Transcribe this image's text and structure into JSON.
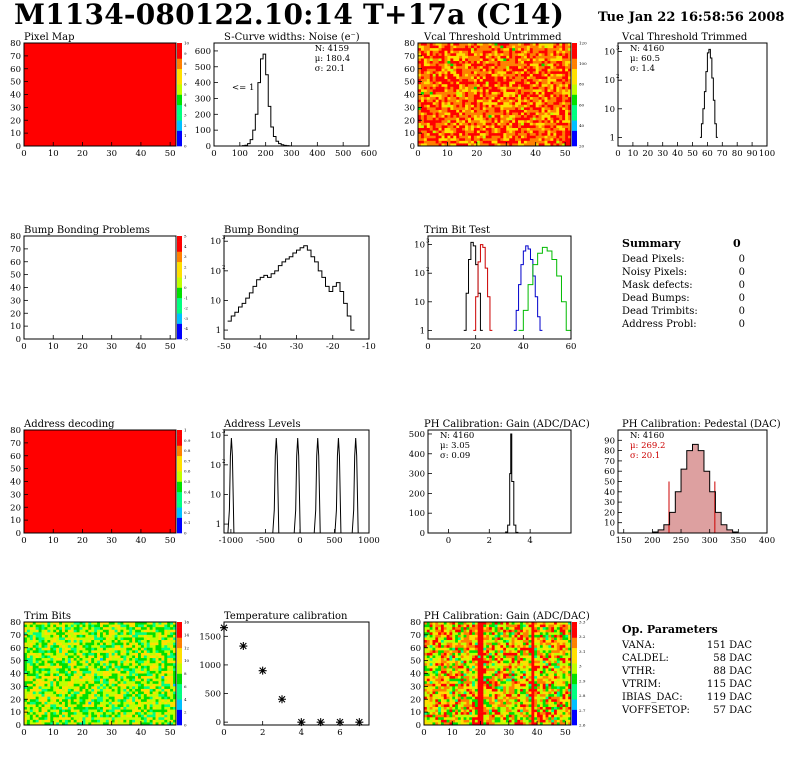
{
  "header": {
    "title": "M1134-080122.10:14 T+17a (C14)",
    "date": "Tue Jan 22 16:58:56 2008"
  },
  "colors": {
    "red_fill": "#ff0000",
    "pedestal_fill": "#dda0a0",
    "trim_series": [
      "#000000",
      "#cc0000",
      "#0000cc",
      "#00bb00"
    ]
  },
  "chart_data": [
    {
      "id": "pixel-map",
      "type": "heatmap",
      "title": "Pixel Map",
      "pattern": "uniform-red",
      "xlim": [
        0,
        52
      ],
      "ylim": [
        0,
        80
      ],
      "xticks": [
        0,
        10,
        20,
        30,
        40,
        50
      ],
      "yticks": [
        0,
        10,
        20,
        30,
        40,
        50,
        60,
        70,
        80
      ],
      "zticks": [
        "0",
        "1",
        "2",
        "3",
        "4",
        "5",
        "6",
        "7",
        "8",
        "9",
        "10"
      ]
    },
    {
      "id": "scurve-widths",
      "type": "line",
      "title": "S-Curve widths: Noise (e⁻)",
      "log": false,
      "xlim": [
        0,
        600
      ],
      "ylim": [
        0,
        650
      ],
      "xticks": [
        0,
        100,
        200,
        300,
        400,
        500,
        600
      ],
      "yticks": [
        0,
        100,
        200,
        300,
        400,
        500,
        600
      ],
      "stats": [
        "N: 4159",
        "μ: 180.4",
        "σ: 20.1"
      ],
      "annotation": "<= 1",
      "x": [
        100,
        110,
        120,
        130,
        140,
        150,
        160,
        170,
        180,
        190,
        200,
        210,
        220,
        230,
        240,
        250,
        260,
        270,
        280,
        290,
        300
      ],
      "values": [
        0,
        2,
        5,
        15,
        40,
        100,
        200,
        400,
        550,
        580,
        450,
        250,
        120,
        60,
        30,
        15,
        8,
        4,
        2,
        1,
        0
      ]
    },
    {
      "id": "vcal-untrimmed",
      "type": "heatmap",
      "title": "Vcal Threshold Untrimmed",
      "pattern": "noise-warm",
      "xlim": [
        0,
        52
      ],
      "ylim": [
        0,
        80
      ],
      "xticks": [
        0,
        10,
        20,
        30,
        40,
        50
      ],
      "yticks": [
        0,
        10,
        20,
        30,
        40,
        50,
        60,
        70,
        80
      ],
      "zticks": [
        "20",
        "40",
        "60",
        "80",
        "100",
        "120"
      ]
    },
    {
      "id": "vcal-trimmed",
      "type": "line",
      "title": "Vcal Threshold Trimmed",
      "log": true,
      "xlim": [
        0,
        100
      ],
      "ylim": [
        0.5,
        2000
      ],
      "xticks": [
        0,
        10,
        20,
        30,
        40,
        50,
        60,
        70,
        80,
        90,
        100
      ],
      "yticks": [
        1,
        10,
        100,
        1000
      ],
      "stats": [
        "N: 4160",
        "μ: 60.5",
        "σ:  1.4"
      ],
      "x": [
        55,
        56,
        57,
        58,
        59,
        60,
        61,
        62,
        63,
        64,
        65,
        66
      ],
      "values": [
        1,
        3,
        10,
        40,
        200,
        900,
        1200,
        600,
        120,
        20,
        3,
        1
      ]
    },
    {
      "id": "bump-problems",
      "type": "heatmap",
      "title": "Bump Bonding Problems",
      "pattern": "empty",
      "xlim": [
        0,
        52
      ],
      "ylim": [
        0,
        80
      ],
      "xticks": [
        0,
        10,
        20,
        30,
        40,
        50
      ],
      "yticks": [
        0,
        10,
        20,
        30,
        40,
        50,
        60,
        70,
        80
      ],
      "zticks": [
        "-5",
        "-4",
        "-3",
        "-2",
        "-1",
        "0",
        "1",
        "2",
        "3",
        "4",
        "5"
      ]
    },
    {
      "id": "bump-bonding",
      "type": "line",
      "title": "Bump Bonding",
      "log": true,
      "xlim": [
        -50,
        -10
      ],
      "ylim": [
        0.5,
        1500
      ],
      "xticks": [
        -50,
        -40,
        -30,
        -20,
        -10
      ],
      "yticks": [
        1,
        10,
        100,
        1000
      ],
      "x": [
        -49,
        -48,
        -47,
        -46,
        -45,
        -44,
        -43,
        -42,
        -41,
        -40,
        -39,
        -38,
        -37,
        -36,
        -35,
        -34,
        -33,
        -32,
        -31,
        -30,
        -29,
        -28,
        -27,
        -26,
        -25,
        -24,
        -23,
        -22,
        -21,
        -20,
        -19,
        -18,
        -17,
        -16,
        -15
      ],
      "values": [
        2,
        3,
        4,
        6,
        8,
        12,
        18,
        30,
        50,
        60,
        70,
        60,
        80,
        100,
        150,
        200,
        250,
        300,
        400,
        500,
        600,
        700,
        500,
        300,
        200,
        100,
        60,
        30,
        20,
        30,
        40,
        20,
        8,
        3,
        1
      ]
    },
    {
      "id": "trim-bit-test",
      "type": "line",
      "title": "Trim Bit Test",
      "log": true,
      "xlim": [
        0,
        60
      ],
      "ylim": [
        0.5,
        2000
      ],
      "xticks": [
        0,
        20,
        40,
        60
      ],
      "yticks": [
        1,
        10,
        100,
        1000
      ],
      "series": [
        {
          "x": [
            15,
            16,
            17,
            18,
            19,
            20,
            21,
            22
          ],
          "values": [
            1,
            20,
            300,
            1200,
            900,
            200,
            20,
            1
          ]
        },
        {
          "x": [
            19,
            20,
            21,
            22,
            23,
            24,
            25,
            26
          ],
          "values": [
            1,
            15,
            250,
            1000,
            800,
            150,
            15,
            1
          ]
        },
        {
          "x": [
            36,
            37,
            38,
            39,
            40,
            41,
            42,
            43,
            44,
            45,
            46,
            47
          ],
          "values": [
            1,
            5,
            40,
            200,
            600,
            900,
            700,
            300,
            80,
            15,
            3,
            1
          ]
        },
        {
          "x": [
            38,
            40,
            42,
            44,
            46,
            48,
            50,
            52,
            54,
            56,
            58
          ],
          "values": [
            1,
            5,
            40,
            200,
            500,
            800,
            600,
            300,
            80,
            10,
            1
          ]
        }
      ]
    },
    {
      "id": "address-decoding",
      "type": "heatmap",
      "title": "Address decoding",
      "pattern": "uniform-red",
      "xlim": [
        0,
        52
      ],
      "ylim": [
        0,
        80
      ],
      "xticks": [
        0,
        10,
        20,
        30,
        40,
        50
      ],
      "yticks": [
        0,
        10,
        20,
        30,
        40,
        50,
        60,
        70,
        80
      ],
      "zticks": [
        "0",
        "0.1",
        "0.2",
        "0.3",
        "0.4",
        "0.5",
        "0.6",
        "0.7",
        "0.8",
        "0.9",
        "1"
      ]
    },
    {
      "id": "address-levels",
      "type": "line",
      "title": "Address Levels",
      "log": true,
      "xlim": [
        -1100,
        1000
      ],
      "ylim": [
        0.5,
        1500
      ],
      "xticks": [
        -1000,
        -500,
        0,
        500,
        1000
      ],
      "yticks": [
        1,
        10,
        100,
        1000
      ],
      "peaks": [
        -1000,
        -350,
        -40,
        250,
        550,
        800
      ]
    },
    {
      "id": "ph-gain-hist",
      "type": "line",
      "title": "PH Calibration: Gain (ADC/DAC)",
      "log": false,
      "xlim": [
        -1,
        6
      ],
      "ylim": [
        0,
        520
      ],
      "xticks": [
        0,
        2,
        4
      ],
      "yticks": [
        0,
        100,
        200,
        300,
        400,
        500
      ],
      "stats": [
        "N: 4160",
        "μ: 3.05",
        "σ: 0.09"
      ],
      "x": [
        2.7,
        2.8,
        2.9,
        3.0,
        3.05,
        3.1,
        3.2,
        3.3,
        3.4
      ],
      "values": [
        0,
        5,
        40,
        300,
        500,
        260,
        40,
        3,
        0
      ]
    },
    {
      "id": "ph-pedestal",
      "type": "line",
      "title": "PH Calibration: Pedestal (DAC)",
      "log": false,
      "xlim": [
        140,
        400
      ],
      "ylim": [
        0,
        100
      ],
      "xticks": [
        150,
        200,
        250,
        300,
        350,
        400
      ],
      "yticks": [
        0,
        10,
        20,
        30,
        40,
        50,
        60,
        70,
        80,
        90
      ],
      "stats": [
        "N: 4160",
        "μ: 269.2",
        "σ: 20.1"
      ],
      "x": [
        200,
        210,
        220,
        230,
        240,
        250,
        260,
        270,
        280,
        290,
        300,
        310,
        320,
        330,
        340
      ],
      "values": [
        1,
        3,
        8,
        20,
        40,
        62,
        80,
        86,
        80,
        60,
        40,
        20,
        8,
        3,
        1
      ]
    },
    {
      "id": "trim-bits",
      "type": "heatmap",
      "title": "Trim Bits",
      "pattern": "noise-green",
      "xlim": [
        0,
        52
      ],
      "ylim": [
        0,
        80
      ],
      "xticks": [
        0,
        10,
        20,
        30,
        40,
        50
      ],
      "yticks": [
        0,
        10,
        20,
        30,
        40,
        50,
        60,
        70,
        80
      ],
      "zticks": [
        "0",
        "2",
        "4",
        "6",
        "8",
        "10",
        "12",
        "14",
        "16"
      ]
    },
    {
      "id": "temperature-calibration",
      "type": "scatter",
      "title": "Temperature calibration",
      "xlim": [
        0,
        7.5
      ],
      "ylim": [
        -50,
        1750
      ],
      "xticks": [
        0,
        2,
        4,
        6
      ],
      "yticks": [
        0,
        500,
        1000,
        1500
      ],
      "x": [
        0,
        1,
        2,
        3,
        4,
        5,
        6,
        7
      ],
      "values": [
        1650,
        1330,
        900,
        400,
        0,
        0,
        0,
        0
      ]
    },
    {
      "id": "ph-gain-map",
      "type": "heatmap",
      "title": "PH Calibration: Gain (ADC/DAC)",
      "pattern": "noise-mixed",
      "xlim": [
        0,
        52
      ],
      "ylim": [
        0,
        80
      ],
      "xticks": [
        0,
        10,
        20,
        30,
        40,
        50
      ],
      "yticks": [
        0,
        10,
        20,
        30,
        40,
        50,
        60,
        70,
        80
      ],
      "zticks": [
        "2.6",
        "2.7",
        "2.8",
        "2.9",
        "3",
        "3.1",
        "3.2",
        "3.3"
      ]
    }
  ],
  "summary": {
    "title": "Summary",
    "total": "0",
    "items": [
      {
        "label": "Dead Pixels:",
        "value": "0"
      },
      {
        "label": "Noisy Pixels:",
        "value": "0"
      },
      {
        "label": "Mask defects:",
        "value": "0"
      },
      {
        "label": "Dead Bumps:",
        "value": "0"
      },
      {
        "label": "Dead Trimbits:",
        "value": "0"
      },
      {
        "label": "Address Probl:",
        "value": "0"
      }
    ]
  },
  "op_params": {
    "title": "Op. Parameters",
    "items": [
      {
        "label": "VANA:",
        "value": "151 DAC"
      },
      {
        "label": "CALDEL:",
        "value": "58 DAC"
      },
      {
        "label": "VTHR:",
        "value": "88 DAC"
      },
      {
        "label": "VTRIM:",
        "value": "115 DAC"
      },
      {
        "label": "IBIAS_DAC:",
        "value": "119 DAC"
      },
      {
        "label": "VOFFSETOP:",
        "value": "57 DAC"
      }
    ]
  }
}
